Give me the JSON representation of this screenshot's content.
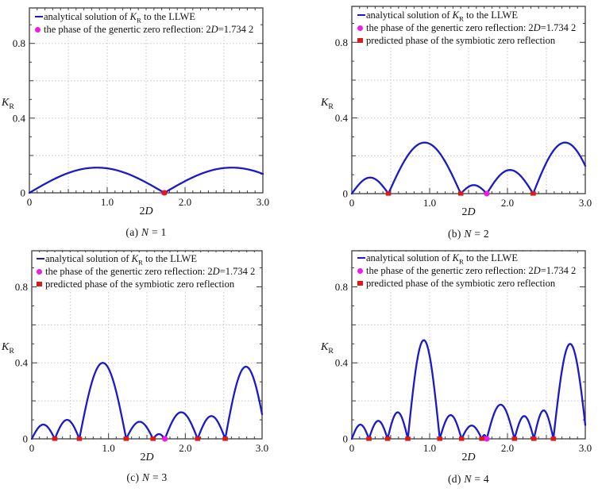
{
  "colors": {
    "curve": "#1a1ac8",
    "generic_zero": "#ee1ce5",
    "symbiotic_zero": "#dd1a1a",
    "grid": "#c5c5c5",
    "frame": "#3c3c3c",
    "text": "#111111"
  },
  "chart_data": [
    {
      "id": "a",
      "type": "line",
      "caption_runs": [
        [
          "(a) "
        ],
        [
          "N",
          "i"
        ],
        [
          " = 1"
        ]
      ],
      "xlabel_runs": [
        [
          "2"
        ],
        [
          "D",
          "i"
        ]
      ],
      "ylabel_runs": [
        [
          "K",
          "i"
        ],
        [
          "R",
          "sub"
        ]
      ],
      "xlim": [
        0,
        3.0
      ],
      "ylim": [
        0,
        0.99
      ],
      "xticks": [
        0,
        1.0,
        2.0,
        3.0
      ],
      "xtick_labels": [
        "0",
        "1.0",
        "2.0",
        "3.0"
      ],
      "yticks": [
        0,
        0.4,
        0.8
      ],
      "ytick_labels": [
        "0",
        "0.4",
        "0.8"
      ],
      "grid_x": [
        0.5,
        1.0,
        1.5,
        2.0,
        2.5
      ],
      "grid_y": [
        0.2,
        0.4,
        0.6,
        0.8
      ],
      "legend": [
        {
          "marker": "line",
          "runs": [
            [
              "analytical solution of "
            ],
            [
              "K",
              "i"
            ],
            [
              "R",
              "sub"
            ],
            [
              " to the LLWE"
            ]
          ]
        },
        {
          "marker": "circle",
          "runs": [
            [
              "the phase of the genertic zero reflection: 2"
            ],
            [
              "D",
              "i"
            ],
            [
              "=1.734 2"
            ]
          ]
        }
      ],
      "arches": [
        {
          "from": 0,
          "to": 1.7342,
          "peak": 0.135
        },
        {
          "from": 1.7342,
          "to": 3.4684,
          "peak": 0.135
        }
      ],
      "generic_zero_x": 1.7342,
      "symbiotic_zeros_x": [
        1.7342
      ]
    },
    {
      "id": "b",
      "type": "line",
      "caption_runs": [
        [
          "(b) "
        ],
        [
          "N",
          "i"
        ],
        [
          " = 2"
        ]
      ],
      "xlabel_runs": [
        [
          "2"
        ],
        [
          "D",
          "i"
        ]
      ],
      "ylabel_runs": [
        [
          "K",
          "i"
        ],
        [
          "R",
          "sub"
        ]
      ],
      "xlim": [
        0,
        3.0
      ],
      "ylim": [
        0,
        0.99
      ],
      "xticks": [
        0,
        1.0,
        2.0,
        3.0
      ],
      "xtick_labels": [
        "0",
        "1.0",
        "2.0",
        "3.0"
      ],
      "yticks": [
        0,
        0.4,
        0.8
      ],
      "ytick_labels": [
        "0",
        "0.4",
        "0.8"
      ],
      "grid_x": [
        0.5,
        1.0,
        1.5,
        2.0,
        2.5
      ],
      "grid_y": [
        0.2,
        0.4,
        0.6,
        0.8
      ],
      "legend": [
        {
          "marker": "line",
          "runs": [
            [
              "analytical solution of "
            ],
            [
              "K",
              "i"
            ],
            [
              "R",
              "sub"
            ],
            [
              " to the LLWE"
            ]
          ]
        },
        {
          "marker": "circle",
          "runs": [
            [
              "the phase of the genertic zero reflection: 2"
            ],
            [
              "D",
              "i"
            ],
            [
              "=1.734 2"
            ]
          ]
        },
        {
          "marker": "square",
          "runs": [
            [
              "predicted phase of the symbiotic zero reflection"
            ]
          ]
        }
      ],
      "arches": [
        {
          "from": 0,
          "to": 0.47,
          "peak": 0.085
        },
        {
          "from": 0.47,
          "to": 1.4,
          "peak": 0.27
        },
        {
          "from": 1.4,
          "to": 1.7342,
          "peak": 0.045
        },
        {
          "from": 1.7342,
          "to": 2.33,
          "peak": 0.125
        },
        {
          "from": 2.33,
          "to": 3.15,
          "peak": 0.27
        }
      ],
      "generic_zero_x": 1.7342,
      "symbiotic_zeros_x": [
        0.47,
        1.4,
        2.33
      ]
    },
    {
      "id": "c",
      "type": "line",
      "caption_runs": [
        [
          "(c) "
        ],
        [
          "N",
          "i"
        ],
        [
          " = 3"
        ]
      ],
      "xlabel_runs": [
        [
          "2"
        ],
        [
          "D",
          "i"
        ]
      ],
      "ylabel_runs": [
        [
          "K",
          "i"
        ],
        [
          "R",
          "sub"
        ]
      ],
      "xlim": [
        0,
        3.0
      ],
      "ylim": [
        0,
        0.99
      ],
      "xticks": [
        0,
        1.0,
        2.0,
        3.0
      ],
      "xtick_labels": [
        "0",
        "1.0",
        "2.0",
        "3.0"
      ],
      "yticks": [
        0,
        0.4,
        0.8
      ],
      "ytick_labels": [
        "0",
        "0.4",
        "0.8"
      ],
      "grid_x": [
        0.5,
        1.0,
        1.5,
        2.0,
        2.5
      ],
      "grid_y": [
        0.2,
        0.4,
        0.6,
        0.8
      ],
      "legend": [
        {
          "marker": "line",
          "runs": [
            [
              "analytical solution of "
            ],
            [
              "K",
              "i"
            ],
            [
              "R",
              "sub"
            ],
            [
              " to the LLWE"
            ]
          ]
        },
        {
          "marker": "circle",
          "runs": [
            [
              "the phase of the genertic zero reflection: 2"
            ],
            [
              "D",
              "i"
            ],
            [
              "=1.734 2"
            ]
          ]
        },
        {
          "marker": "square",
          "runs": [
            [
              "predicted phase of the symbiotic zero reflection"
            ]
          ]
        }
      ],
      "arches": [
        {
          "from": 0,
          "to": 0.3,
          "peak": 0.075
        },
        {
          "from": 0.3,
          "to": 0.62,
          "peak": 0.1
        },
        {
          "from": 0.62,
          "to": 1.23,
          "peak": 0.4
        },
        {
          "from": 1.23,
          "to": 1.58,
          "peak": 0.09
        },
        {
          "from": 1.58,
          "to": 1.7342,
          "peak": 0.025
        },
        {
          "from": 1.7342,
          "to": 2.16,
          "peak": 0.14
        },
        {
          "from": 2.16,
          "to": 2.52,
          "peak": 0.12
        },
        {
          "from": 2.52,
          "to": 3.06,
          "peak": 0.38
        }
      ],
      "generic_zero_x": 1.7342,
      "symbiotic_zeros_x": [
        0.3,
        0.62,
        1.23,
        1.58,
        2.16,
        2.52
      ]
    },
    {
      "id": "d",
      "type": "line",
      "caption_runs": [
        [
          "(d) "
        ],
        [
          "N",
          "i"
        ],
        [
          " = 4"
        ]
      ],
      "xlabel_runs": [
        [
          "2"
        ],
        [
          "D",
          "i"
        ]
      ],
      "ylabel_runs": [
        [
          "K",
          "i"
        ],
        [
          "R",
          "sub"
        ]
      ],
      "xlim": [
        0,
        3.0
      ],
      "ylim": [
        0,
        0.99
      ],
      "xticks": [
        0,
        1.0,
        2.0,
        3.0
      ],
      "xtick_labels": [
        "0",
        "1.0",
        "2.0",
        "3.0"
      ],
      "yticks": [
        0,
        0.4,
        0.8
      ],
      "ytick_labels": [
        "0",
        "0.4",
        "0.8"
      ],
      "grid_x": [
        0.5,
        1.0,
        1.5,
        2.0,
        2.5
      ],
      "grid_y": [
        0.2,
        0.4,
        0.6,
        0.8
      ],
      "legend": [
        {
          "marker": "line",
          "runs": [
            [
              "analytical solution of "
            ],
            [
              "K",
              "i"
            ],
            [
              "R",
              "sub"
            ],
            [
              " to the LLWE"
            ]
          ]
        },
        {
          "marker": "circle",
          "runs": [
            [
              "the phase of the genertic zero reflection: 2"
            ],
            [
              "D",
              "i"
            ],
            [
              "=1.734 2"
            ]
          ]
        },
        {
          "marker": "square",
          "runs": [
            [
              "predicted phase of the symbiotic zero reflection"
            ]
          ]
        }
      ],
      "arches": [
        {
          "from": 0,
          "to": 0.22,
          "peak": 0.075
        },
        {
          "from": 0.22,
          "to": 0.46,
          "peak": 0.095
        },
        {
          "from": 0.46,
          "to": 0.72,
          "peak": 0.14
        },
        {
          "from": 0.72,
          "to": 1.13,
          "peak": 0.52
        },
        {
          "from": 1.13,
          "to": 1.41,
          "peak": 0.125
        },
        {
          "from": 1.41,
          "to": 1.67,
          "peak": 0.07
        },
        {
          "from": 1.67,
          "to": 1.7342,
          "peak": 0.02
        },
        {
          "from": 1.7342,
          "to": 2.09,
          "peak": 0.18
        },
        {
          "from": 2.09,
          "to": 2.34,
          "peak": 0.12
        },
        {
          "from": 2.34,
          "to": 2.59,
          "peak": 0.15
        },
        {
          "from": 2.59,
          "to": 3.02,
          "peak": 0.5
        }
      ],
      "generic_zero_x": 1.7342,
      "symbiotic_zeros_x": [
        0.22,
        0.46,
        0.72,
        1.13,
        1.41,
        1.67,
        2.09,
        2.34,
        2.59
      ]
    }
  ]
}
